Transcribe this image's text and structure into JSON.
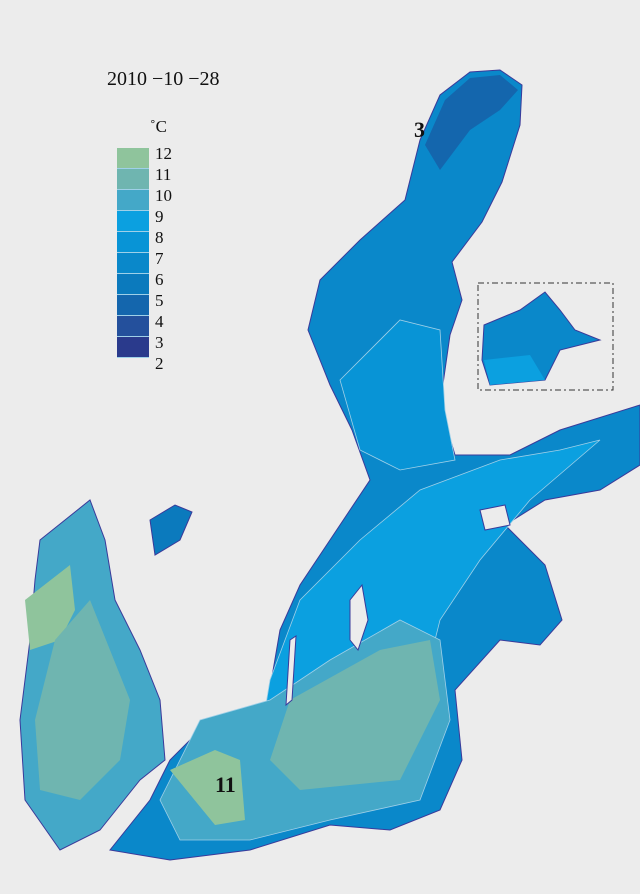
{
  "date": "2010 −10 −28",
  "legend": {
    "unit": "˚C",
    "levels": [
      {
        "value": "12",
        "color": "#8fc49c"
      },
      {
        "value": "11",
        "color": "#6fb5b0"
      },
      {
        "value": "10",
        "color": "#44a8c8"
      },
      {
        "value": "9",
        "color": "#0ba0e0"
      },
      {
        "value": "8",
        "color": "#0894d6"
      },
      {
        "value": "7",
        "color": "#0a88ca"
      },
      {
        "value": "6",
        "color": "#0b7abd"
      },
      {
        "value": "5",
        "color": "#1466ad"
      },
      {
        "value": "4",
        "color": "#24509c"
      },
      {
        "value": "3",
        "color": "#2a3a8c"
      }
    ],
    "bottom_label": "2"
  },
  "annotations": {
    "north_min": "3",
    "south_max": "11"
  }
}
